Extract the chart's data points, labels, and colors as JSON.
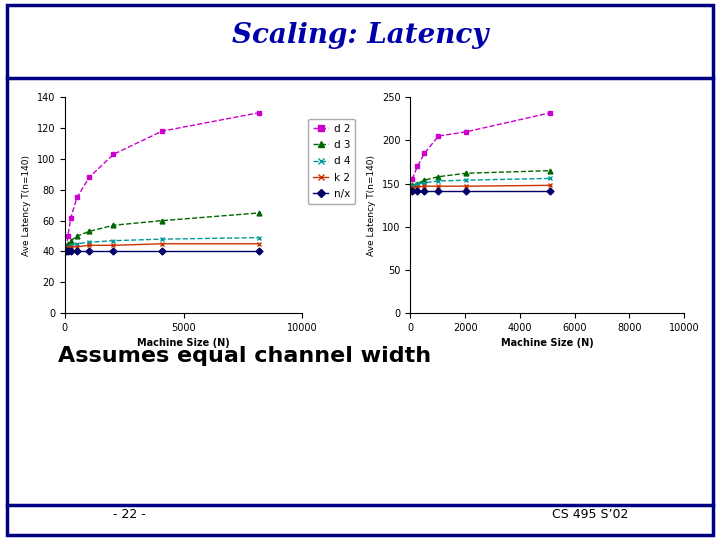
{
  "title": "Scaling: Latency",
  "subtitle": "Assumes equal channel width",
  "footer_left": "- 22 -",
  "footer_right": "CS 495 S’02",
  "title_color": "#0000aa",
  "title_fontsize": 20,
  "subtitle_fontsize": 16,
  "background_color": "#ffffff",
  "border_color": "#000080",
  "chart1": {
    "xlabel": "Machine Size (N)",
    "ylabel": "Ave Latency T(n=140)",
    "xlim": [
      0,
      10000
    ],
    "ylim": [
      0,
      140
    ],
    "xticks": [
      0,
      5000,
      10000
    ],
    "yticks": [
      0,
      20,
      40,
      60,
      80,
      100,
      120,
      140
    ],
    "series": {
      "d 2": {
        "x": [
          64,
          128,
          256,
          512,
          1024,
          2048,
          4096,
          8192
        ],
        "y": [
          42,
          50,
          62,
          75,
          88,
          103,
          118,
          130
        ],
        "color": "#cc00cc",
        "marker": "s",
        "linestyle": "--"
      },
      "d 3": {
        "x": [
          64,
          128,
          256,
          512,
          1024,
          2048,
          4096,
          8192
        ],
        "y": [
          43,
          45,
          47,
          50,
          53,
          57,
          60,
          65
        ],
        "color": "#006600",
        "marker": "^",
        "linestyle": "--"
      },
      "d 4": {
        "x": [
          64,
          128,
          256,
          512,
          1024,
          2048,
          4096,
          8192
        ],
        "y": [
          42,
          43,
          44,
          45,
          46,
          47,
          48,
          49
        ],
        "color": "#009999",
        "marker": "x",
        "linestyle": "--"
      },
      "k 2": {
        "x": [
          64,
          128,
          256,
          512,
          1024,
          2048,
          4096,
          8192
        ],
        "y": [
          42,
          42,
          43,
          43,
          44,
          44,
          45,
          45
        ],
        "color": "#cc3300",
        "marker": "x",
        "linestyle": "-"
      },
      "n/x": {
        "x": [
          64,
          128,
          256,
          512,
          1024,
          2048,
          4096,
          8192
        ],
        "y": [
          40,
          40,
          40,
          40,
          40,
          40,
          40,
          40
        ],
        "color": "#000066",
        "marker": "D",
        "linestyle": "-"
      }
    }
  },
  "chart2": {
    "xlabel": "Machine Size (N)",
    "ylabel": "Ave Latency T(n=140)",
    "xlim": [
      0,
      10000
    ],
    "ylim": [
      0,
      250
    ],
    "xticks": [
      0,
      2000,
      4000,
      6000,
      8000,
      10000
    ],
    "yticks": [
      0,
      50,
      100,
      150,
      200,
      250
    ],
    "series": {
      "d 2": {
        "x": [
          64,
          256,
          512,
          1024,
          2048,
          5120
        ],
        "y": [
          155,
          170,
          185,
          205,
          210,
          232
        ],
        "color": "#cc00cc",
        "marker": "s",
        "linestyle": "--"
      },
      "d 3": {
        "x": [
          64,
          256,
          512,
          1024,
          2048,
          5120
        ],
        "y": [
          148,
          150,
          154,
          158,
          162,
          165
        ],
        "color": "#006600",
        "marker": "^",
        "linestyle": "--"
      },
      "d 4": {
        "x": [
          64,
          256,
          512,
          1024,
          2048,
          5120
        ],
        "y": [
          147,
          149,
          151,
          153,
          154,
          156
        ],
        "color": "#009999",
        "marker": "x",
        "linestyle": "--"
      },
      "k 2": {
        "x": [
          64,
          256,
          512,
          1024,
          2048,
          5120
        ],
        "y": [
          145,
          146,
          147,
          147,
          147,
          148
        ],
        "color": "#cc3300",
        "marker": "x",
        "linestyle": "-"
      },
      "n/x": {
        "x": [
          64,
          256,
          512,
          1024,
          2048,
          5120
        ],
        "y": [
          142,
          142,
          142,
          142,
          142,
          142
        ],
        "color": "#000066",
        "marker": "D",
        "linestyle": "-"
      }
    }
  },
  "legend_labels": [
    "d 2",
    "d 3",
    "d 4",
    "k 2",
    "n/x"
  ],
  "legend_colors": [
    "#cc00cc",
    "#006600",
    "#009999",
    "#cc3300",
    "#000066"
  ],
  "legend_markers": [
    "s",
    "^",
    "x",
    "x",
    "D"
  ],
  "legend_linestyles": [
    "--",
    "--",
    "--",
    "-",
    "-"
  ]
}
